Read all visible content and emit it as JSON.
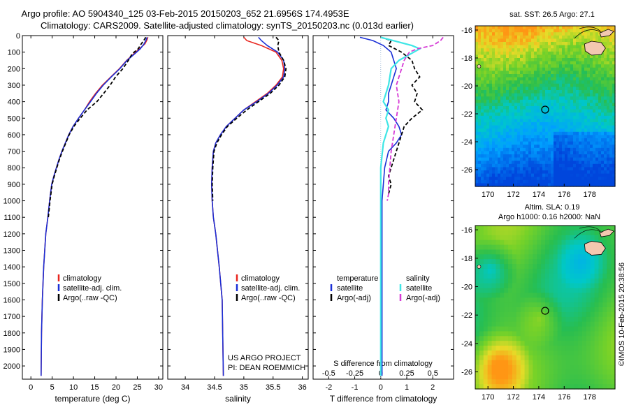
{
  "titles": {
    "line1": "Argo profile: AO 5904340_125 03-Feb-2015 20150203_652 21.6956S 174.4953E",
    "line2": "Climatology: CARS2009. Satellite-adjusted climatology: synTS_20150203.nc (0.013d earlier)"
  },
  "colors": {
    "climatology": "#e8251e",
    "satellite": "#1a2fd6",
    "argo": "#000000",
    "satellite_salinity": "#3ee6e6",
    "argo_adj_salinity": "#d63ad6"
  },
  "depth_axis": {
    "ticks": [
      0,
      100,
      200,
      300,
      400,
      500,
      600,
      700,
      800,
      900,
      1000,
      1100,
      1200,
      1300,
      1400,
      1500,
      1600,
      1700,
      1800,
      1900,
      2000
    ],
    "range": [
      0,
      2080
    ]
  },
  "chart_data": [
    {
      "type": "line",
      "id": "temperature",
      "xlabel": "temperature (deg C)",
      "ylabel": "",
      "xlim": [
        -2,
        31
      ],
      "ylim": [
        2080,
        0
      ],
      "xticks": [
        0,
        5,
        10,
        15,
        20,
        25,
        30
      ],
      "legend": [
        "climatology",
        "satellite-adj. clim.",
        "Argo(..raw -QC)"
      ],
      "series": [
        {
          "name": "climatology",
          "x": [
            27.5,
            27.2,
            26.8,
            25.5,
            24.2,
            22.5,
            20.8,
            18.8,
            16.8,
            15.2,
            13.8,
            12.6,
            11.2,
            9.9,
            8.9,
            8.1,
            7.3,
            6.6,
            6.0,
            5.4,
            4.9,
            4.4,
            4.0,
            3.5,
            3.0,
            2.7,
            2.5,
            2.4
          ],
          "y": [
            10,
            30,
            50,
            80,
            110,
            150,
            200,
            250,
            300,
            350,
            400,
            450,
            500,
            550,
            600,
            650,
            700,
            750,
            800,
            850,
            900,
            1000,
            1100,
            1200,
            1400,
            1600,
            1800,
            2060
          ]
        },
        {
          "name": "satellite-adj. clim.",
          "x": [
            27.3,
            27.0,
            26.6,
            25.7,
            24.4,
            22.6,
            20.9,
            18.9,
            17.0,
            15.4,
            14.0,
            12.6,
            11.2,
            9.9,
            8.9,
            8.1,
            7.3,
            6.6,
            6.0,
            5.4,
            4.9,
            4.4,
            4.0,
            3.5,
            3.0,
            2.7,
            2.5,
            2.4
          ],
          "y": [
            10,
            30,
            50,
            80,
            110,
            150,
            200,
            250,
            300,
            350,
            400,
            450,
            500,
            550,
            600,
            650,
            700,
            750,
            800,
            850,
            900,
            1000,
            1100,
            1200,
            1400,
            1600,
            1800,
            2060
          ]
        },
        {
          "name": "Argo(..raw -QC)",
          "x": [
            27.0,
            26.5,
            25.8,
            25.2,
            23.8,
            22.9,
            21.6,
            19.9,
            18.6,
            17.1,
            15.5,
            13.2,
            11.6,
            10.1,
            9.0,
            8.2,
            7.4,
            6.7,
            6.1,
            5.5,
            5.0,
            4.5,
            4.1
          ],
          "y": [
            10,
            30,
            55,
            80,
            110,
            150,
            200,
            250,
            300,
            350,
            400,
            450,
            500,
            550,
            600,
            650,
            700,
            750,
            800,
            850,
            900,
            1000,
            1100
          ]
        }
      ]
    },
    {
      "type": "line",
      "id": "salinity",
      "xlabel": "salinity",
      "ylabel": "",
      "xlim": [
        33.7,
        36.1
      ],
      "ylim": [
        2080,
        0
      ],
      "xticks": [
        34,
        34.5,
        35,
        35.5,
        36
      ],
      "legend": [
        "climatology",
        "satellite-adj. clim.",
        "Argo(..raw -QC)"
      ],
      "series": [
        {
          "name": "climatology",
          "x": [
            35.0,
            35.05,
            35.3,
            35.55,
            35.65,
            35.68,
            35.66,
            35.55,
            35.4,
            35.2,
            35.0,
            34.85,
            34.7,
            34.6,
            34.52,
            34.48,
            34.46,
            34.45,
            34.46,
            34.48,
            34.52,
            34.58,
            34.63,
            34.65
          ],
          "y": [
            10,
            30,
            60,
            100,
            150,
            200,
            250,
            300,
            350,
            400,
            450,
            500,
            550,
            600,
            650,
            700,
            800,
            900,
            1000,
            1100,
            1200,
            1400,
            1600,
            2060
          ]
        },
        {
          "name": "satellite-adj. clim.",
          "x": [
            35.25,
            35.3,
            35.4,
            35.58,
            35.68,
            35.7,
            35.68,
            35.57,
            35.42,
            35.22,
            35.0,
            34.85,
            34.7,
            34.6,
            34.52,
            34.48,
            34.46,
            34.45,
            34.46,
            34.48,
            34.52,
            34.58,
            34.63,
            34.65
          ],
          "y": [
            10,
            30,
            60,
            100,
            150,
            200,
            250,
            300,
            350,
            400,
            450,
            500,
            550,
            600,
            650,
            700,
            800,
            900,
            1000,
            1100,
            1200,
            1400,
            1600,
            2060
          ]
        },
        {
          "name": "Argo(..raw -QC)",
          "x": [
            35.55,
            35.6,
            35.58,
            35.6,
            35.68,
            35.72,
            35.7,
            35.6,
            35.45,
            35.25,
            35.05,
            34.88,
            34.72,
            34.62,
            34.54,
            34.49,
            34.47,
            34.46,
            34.47
          ],
          "y": [
            10,
            30,
            60,
            100,
            150,
            200,
            250,
            300,
            350,
            400,
            450,
            500,
            550,
            600,
            650,
            700,
            800,
            900,
            1000
          ]
        }
      ]
    },
    {
      "type": "line",
      "id": "difference",
      "xlabel": "T difference from climatology",
      "xlabel_top": "S difference from climatology",
      "ylabel": "",
      "xlim": [
        -2.6,
        2.8
      ],
      "ylim": [
        2080,
        0
      ],
      "xticks": [
        -2,
        -1,
        0,
        1,
        2
      ],
      "sticks": [
        "-0.5",
        "-0.25",
        "0",
        "0.25",
        "0.5"
      ],
      "sticks_pos": [
        -2,
        -1,
        0,
        1,
        2
      ],
      "legend_temperature_title": "temperature",
      "legend_salinity_title": "salinity",
      "legend": [
        "satellite",
        "Argo(-adj)",
        "satellite",
        "Argo(-adj)"
      ],
      "series": [
        {
          "name": "satellite",
          "x": [
            -0.8,
            -0.3,
            0.1,
            0.4,
            0.5,
            0.6,
            0.5,
            0.4,
            0.3,
            0.3,
            0.2,
            0.5,
            0.7,
            0.8,
            0.6,
            0.3,
            0.15,
            0.1,
            0.05,
            0.05,
            0.05,
            0.05
          ],
          "y": [
            10,
            30,
            60,
            100,
            150,
            200,
            250,
            300,
            350,
            400,
            450,
            500,
            550,
            600,
            650,
            700,
            800,
            900,
            1000,
            1200,
            1500,
            2060
          ]
        },
        {
          "name": "Argo(-adj)",
          "x": [
            0.0,
            0.4,
            0.3,
            0.8,
            1.2,
            1.3,
            1.5,
            1.2,
            1.4,
            1.3,
            1.6,
            1.2,
            0.9,
            0.8,
            0.7,
            0.6,
            0.5,
            0.4,
            0.3,
            0.4,
            0.3
          ],
          "y": [
            10,
            30,
            60,
            100,
            150,
            200,
            250,
            300,
            350,
            400,
            450,
            500,
            550,
            600,
            650,
            700,
            750,
            800,
            850,
            900,
            960
          ]
        },
        {
          "name": "satellite",
          "x": [
            0.0,
            1.2,
            1.5,
            0.7,
            0.4,
            0.3,
            0.2,
            0.1,
            0.3,
            0.2,
            0.3,
            0.1,
            0.0,
            0.0,
            0.0
          ],
          "y": [
            10,
            60,
            80,
            150,
            200,
            300,
            350,
            400,
            450,
            500,
            550,
            650,
            800,
            1200,
            2060
          ]
        },
        {
          "name": "Argo(-adj)",
          "x": [
            2.4,
            2.3,
            2.0,
            1.4,
            1.1,
            0.9,
            0.8,
            0.6,
            0.7,
            0.6,
            0.5,
            0.4,
            0.35,
            0.3,
            0.3,
            0.25
          ],
          "y": [
            10,
            30,
            60,
            80,
            100,
            150,
            200,
            300,
            400,
            500,
            600,
            700,
            800,
            900,
            960,
            1000
          ]
        }
      ]
    },
    {
      "type": "heatmap",
      "id": "sst-map",
      "title": "sat. SST: 26.5 Argo: 27.1",
      "xlim": [
        169,
        180
      ],
      "ylim": [
        -27.2,
        -15.7
      ],
      "xticks": [
        170,
        172,
        174,
        176,
        178
      ],
      "yticks": [
        -16,
        -18,
        -20,
        -22,
        -24,
        -26
      ],
      "argo_position": {
        "lon": 174.5,
        "lat": -21.7
      }
    },
    {
      "type": "heatmap",
      "id": "sla-map",
      "title": "Altim. SLA: 0.19",
      "title2": "Argo h1000: 0.16 h2000: NaN",
      "xlim": [
        169,
        180
      ],
      "ylim": [
        -27.2,
        -15.7
      ],
      "xticks": [
        170,
        172,
        174,
        176,
        178
      ],
      "yticks": [
        -16,
        -18,
        -20,
        -22,
        -24,
        -26
      ],
      "argo_position": {
        "lon": 174.5,
        "lat": -21.7
      }
    }
  ],
  "annotations": {
    "project": "US ARGO PROJECT",
    "pi": "PI: DEAN ROEMMICH",
    "credit": "©IMOS 10-Feb-2015 20:38:56"
  }
}
